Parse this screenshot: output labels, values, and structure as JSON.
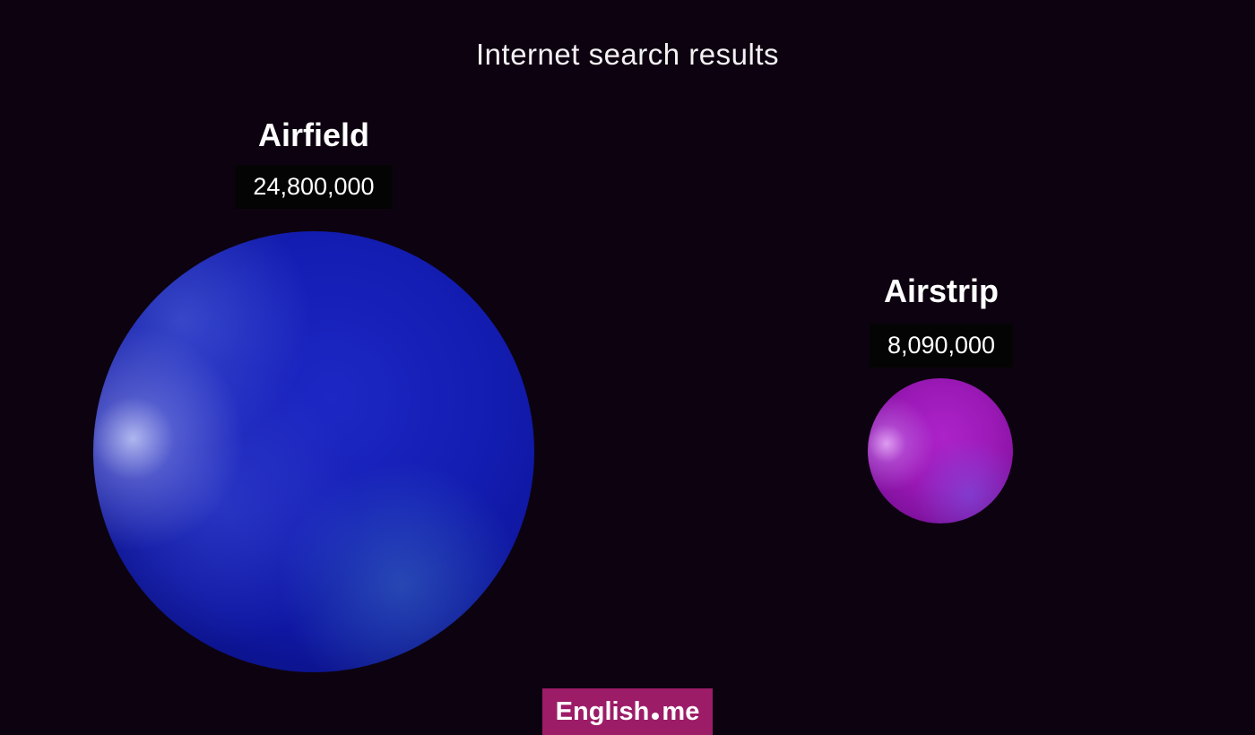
{
  "title": "Internet search results",
  "background_color": "#0D0310",
  "chart_data": {
    "type": "bubble",
    "title": "Internet search results",
    "categories": [
      "Airfield",
      "Airstrip"
    ],
    "values": [
      24800000,
      8090000
    ],
    "value_labels": [
      "24,800,000",
      "8,090,000"
    ],
    "bubble_colors": [
      "#141EB4",
      "#9B19B6"
    ],
    "scaling": "bubble radius proportional to value",
    "legend_position": "none",
    "background_color": "#0D0310"
  },
  "bubbles": [
    {
      "label": "Airfield",
      "value_label": "24,800,000",
      "color": "#141EB4"
    },
    {
      "label": "Airstrip",
      "value_label": "8,090,000",
      "color": "#9B19B6"
    }
  ],
  "badge": {
    "text_left": "English",
    "text_right": "me",
    "background_color": "#9C1C68"
  }
}
